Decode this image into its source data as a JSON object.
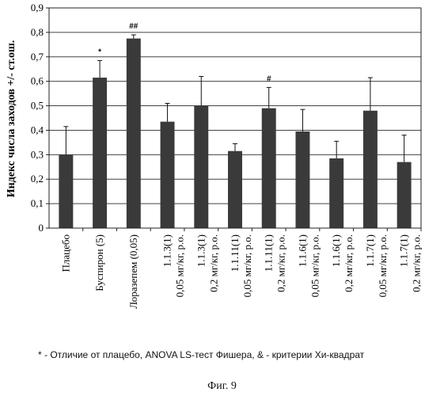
{
  "chart_data": {
    "type": "bar",
    "title": "",
    "xlabel": "",
    "ylabel": "Индекс числа заходов +/- ст.ош.",
    "ylim": [
      0,
      0.9
    ],
    "yticks": [
      "0",
      "0,1",
      "0,2",
      "0,3",
      "0,4",
      "0,5",
      "0,6",
      "0,7",
      "0,8",
      "0,9"
    ],
    "grid": true,
    "categories": [
      "Плацебо",
      "Буспирон (5)",
      "Лоразепем (0,05)",
      "1.1.3(1) 0,05 мг/кг, р.о.",
      "1.1.3(1) 0,2 мг/кг, р.о.",
      "1.1.11(1) 0,05 мг/кг, р.о.",
      "1.1.11(1) 0,2 мг/кг, р.о.",
      "1.1.6(1) 0,05 мг/кг, р.о.",
      "1.1.6(1) 0,2 мг/кг, р.о.",
      "1.1.7(1) 0,05 мг/кг, р.о.",
      "1.1.7(1) 0,2 мг/кг, р.о."
    ],
    "category_lines": [
      [
        "Плацебо"
      ],
      [
        "Буспирон (5)"
      ],
      [
        "Лоразепем (0,05)"
      ],
      [
        "1.1.3(1)",
        "0,05 мг/кг, р.о."
      ],
      [
        "1.1.3(1)",
        "0,2 мг/кг, р.о."
      ],
      [
        "1.1.11(1)",
        "0,05 мг/кг, р.о."
      ],
      [
        "1.1.11(1)",
        "0,2 мг/кг, р.о."
      ],
      [
        "1.1.6(1)",
        "0,05 мг/кг, р.о."
      ],
      [
        "1.1.6(1)",
        "0,2 мг/кг, р.о."
      ],
      [
        "1.1.7(1)",
        "0,05 мг/кг, р.о."
      ],
      [
        "1.1.7(1)",
        "0,2 мг/кг, р.о."
      ]
    ],
    "values": [
      0.3,
      0.615,
      0.775,
      0.435,
      0.5,
      0.315,
      0.49,
      0.395,
      0.285,
      0.48,
      0.27
    ],
    "errors": [
      0.115,
      0.07,
      0.015,
      0.075,
      0.12,
      0.03,
      0.085,
      0.09,
      0.07,
      0.135,
      0.11
    ],
    "annotations": [
      "",
      "*",
      "##",
      "",
      "",
      "",
      "#",
      "",
      "",
      "",
      ""
    ],
    "bar_color": "#3a3a3a"
  },
  "footnote": "* - Отличие от плацебо, ANOVA LS-тест Фишера, & - критерии Хи-квадрат",
  "figure_caption": "Фиг. 9"
}
